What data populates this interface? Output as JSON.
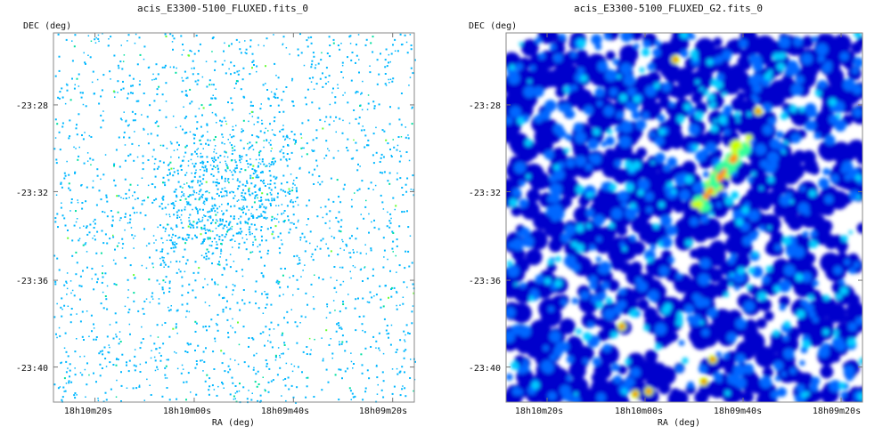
{
  "chart_data": [
    {
      "type": "heatmap",
      "title": "acis_E3300-5100_FLUXED.fits_0",
      "xlabel": "RA (deg)",
      "ylabel": "DEC (deg)",
      "xticks": [
        "18h10m20s",
        "18h10m00s",
        "18h09m40s",
        "18h09m20s"
      ],
      "yticks": [
        "-23:28",
        "-23:32",
        "-23:36",
        "-23:40"
      ],
      "colormap": [
        "#ffffff",
        "#00b7ff",
        "#00e0a0",
        "#66ff33",
        "#ffff00"
      ],
      "style": "sparse-events"
    },
    {
      "type": "heatmap",
      "title": "acis_E3300-5100_FLUXED_G2.fits_0",
      "xlabel": "RA (deg)",
      "ylabel": "DEC (deg)",
      "xticks": [
        "18h10m20s",
        "18h10m00s",
        "18h09m40s",
        "18h09m20s"
      ],
      "yticks": [
        "-23:28",
        "-23:32",
        "-23:36",
        "-23:40"
      ],
      "colormap": [
        "#ffffff",
        "#0000cc",
        "#0066ff",
        "#00ccff",
        "#33ff99",
        "#ccff00",
        "#ff9900",
        "#ff0000"
      ],
      "style": "smoothed"
    }
  ]
}
